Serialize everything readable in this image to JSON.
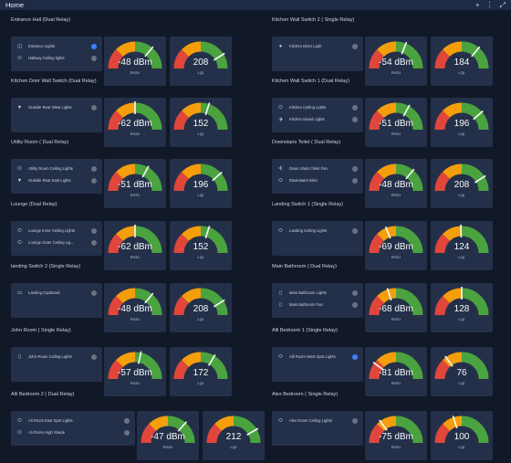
{
  "topbar": {
    "title": "Home",
    "add_icon": "+",
    "menu_icon": "⋮",
    "expand_icon": "⤢"
  },
  "colors": {
    "background": "#111827",
    "card": "#243049",
    "red": "#e0473a",
    "orange": "#f59e0b",
    "green": "#4aa33e",
    "toggle_on": "#3b82f6",
    "toggle_off": "#6b7280"
  },
  "sections": [
    {
      "title": "Entrance Hall (Dual Relay)",
      "switches": [
        {
          "icon": "double-door-icon",
          "label": "Entrance Lights",
          "on": true
        },
        {
          "icon": "ceiling-light-icon",
          "label": "Hallway Ceiling lights",
          "on": false
        }
      ],
      "rssi": {
        "value": "-48 dBm",
        "label": "RSSI",
        "level": 0.72
      },
      "lqi": {
        "value": "208",
        "label": "LQI",
        "level": 0.82
      }
    },
    {
      "title": "Kitchen Wall Switch 2 ( Single Relay)",
      "switches": [
        {
          "icon": "bulb-icon",
          "label": "Kitchen Diner Light",
          "on": false
        }
      ],
      "rssi": {
        "value": "-54 dBm",
        "label": "RSSI",
        "level": 0.62
      },
      "lqi": {
        "value": "184",
        "label": "LQI",
        "level": 0.72
      }
    },
    {
      "title": "Kitchen Door Wall Switch (Dual Relay)",
      "switches": [
        {
          "icon": "outdoor-light-icon",
          "label": "Outside Rear West Lights",
          "on": false
        }
      ],
      "rssi": {
        "value": "-62 dBm",
        "label": "RSSI",
        "level": 0.5
      },
      "lqi": {
        "value": "152",
        "label": "LQI",
        "level": 0.6
      }
    },
    {
      "title": "Kitchen Wall Switch 1 (Dual Relay)",
      "switches": [
        {
          "icon": "ceiling-light-icon",
          "label": "Kitchen Ceiling Lights",
          "on": false
        },
        {
          "icon": "spot-light-icon",
          "label": "Kitchen Island Lights",
          "on": false
        }
      ],
      "rssi": {
        "value": "-51 dBm",
        "label": "RSSI",
        "level": 0.66
      },
      "lqi": {
        "value": "196",
        "label": "LQI",
        "level": 0.77
      }
    },
    {
      "title": "Utility Room ( Dual Relay)",
      "switches": [
        {
          "icon": "ceiling-light-icon",
          "label": "Utility Room Ceiling Lights",
          "on": false
        },
        {
          "icon": "outdoor-light-icon",
          "label": "Outside Rear East Lights",
          "on": false
        }
      ],
      "rssi": {
        "value": "-51 dBm",
        "label": "RSSI",
        "level": 0.66
      },
      "lqi": {
        "value": "196",
        "label": "LQI",
        "level": 0.77
      }
    },
    {
      "title": "Downstairs Toilet ( Dual Relay)",
      "switches": [
        {
          "icon": "fan-icon",
          "label": "Down Stairs Toilet Fan",
          "on": false
        },
        {
          "icon": "ceiling-light-icon",
          "label": "Downstairs toilet",
          "on": false
        }
      ],
      "rssi": {
        "value": "-48 dBm",
        "label": "RSSI",
        "level": 0.72
      },
      "lqi": {
        "value": "208",
        "label": "LQI",
        "level": 0.82
      }
    },
    {
      "title": "Lounge (Dual Relay)",
      "switches": [
        {
          "icon": "ceiling-light-icon",
          "label": "Lounge Inner Ceiling Lights",
          "on": false
        },
        {
          "icon": "ceiling-light-icon",
          "label": "Lounge Outer Ceiling Lig…",
          "on": false
        }
      ],
      "rssi": {
        "value": "-62 dBm",
        "label": "RSSI",
        "level": 0.5
      },
      "lqi": {
        "value": "152",
        "label": "LQI",
        "level": 0.6
      }
    },
    {
      "title": "Landing Switch 1 (Single Relay)",
      "switches": [
        {
          "icon": "ceiling-light-icon",
          "label": "Landing Ceiling Lights",
          "on": false
        }
      ],
      "rssi": {
        "value": "-69 dBm",
        "label": "RSSI",
        "level": 0.38
      },
      "lqi": {
        "value": "124",
        "label": "LQI",
        "level": 0.49
      }
    },
    {
      "title": "landing Switch 2 (Single Relay)",
      "switches": [
        {
          "icon": "cupboard-icon",
          "label": "Landing Cupboard",
          "on": false
        }
      ],
      "rssi": {
        "value": "-48 dBm",
        "label": "RSSI",
        "level": 0.72
      },
      "lqi": {
        "value": "208",
        "label": "LQI",
        "level": 0.82
      }
    },
    {
      "title": "Main Bathroom ( Dual Relay)",
      "switches": [
        {
          "icon": "switch-icon",
          "label": "Main Bathroom Lights",
          "on": false
        },
        {
          "icon": "switch-icon",
          "label": "Main Bathroom Fan",
          "on": false
        }
      ],
      "rssi": {
        "value": "-68 dBm",
        "label": "RSSI",
        "level": 0.4
      },
      "lqi": {
        "value": "128",
        "label": "LQI",
        "level": 0.5
      }
    },
    {
      "title": "John Room ( Single Relay)",
      "switches": [
        {
          "icon": "switch-icon",
          "label": "John Room Ceiling Lights",
          "on": false
        }
      ],
      "rssi": {
        "value": "-57 dBm",
        "label": "RSSI",
        "level": 0.57
      },
      "lqi": {
        "value": "172",
        "label": "LQI",
        "level": 0.67
      }
    },
    {
      "title": "Alli Bedroom 1 (Single Relay)",
      "switches": [
        {
          "icon": "ceiling-light-icon",
          "label": "Alli Room West Spot Lights",
          "on": true
        }
      ],
      "rssi": {
        "value": "-81 dBm",
        "label": "RSSI",
        "level": 0.2
      },
      "lqi": {
        "value": "76",
        "label": "LQI",
        "level": 0.3
      }
    },
    {
      "title": "Alli Bedroom 2 ( Dual Relay)",
      "switches": [
        {
          "icon": "ceiling-light-icon",
          "label": "Ali Room East Spot Lights",
          "on": false
        },
        {
          "icon": "ceiling-light-icon",
          "label": "Ali Room High Shade",
          "on": false
        }
      ],
      "rssi": {
        "value": "-47 dBm",
        "label": "RSSI",
        "level": 0.73
      },
      "lqi": {
        "value": "212",
        "label": "LQI",
        "level": 0.83
      }
    },
    {
      "title": "Alex Bedroom ( Single Relay)",
      "switches": [
        {
          "icon": "ceiling-light-icon",
          "label": "Alex Room Ceiling Lights",
          "on": false
        }
      ],
      "rssi": {
        "value": "-75 dBm",
        "label": "RSSI",
        "level": 0.3
      },
      "lqi": {
        "value": "100",
        "label": "LQI",
        "level": 0.4
      }
    }
  ]
}
